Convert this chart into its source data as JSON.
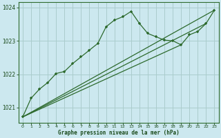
{
  "bg_color": "#cce8ef",
  "grid_color": "#aacccc",
  "line_color": "#2d6a2d",
  "marker_color": "#2d6a2d",
  "xlabel": "Graphe pression niveau de la mer (hPa)",
  "xlabel_color": "#1a4a1a",
  "ylabel_color": "#1a4a1a",
  "xlim": [
    -0.5,
    23.5
  ],
  "ylim": [
    1020.55,
    1024.15
  ],
  "yticks": [
    1021,
    1022,
    1023,
    1024
  ],
  "xticks": [
    0,
    1,
    2,
    3,
    4,
    5,
    6,
    7,
    8,
    9,
    10,
    11,
    12,
    13,
    14,
    15,
    16,
    17,
    18,
    19,
    20,
    21,
    22,
    23
  ],
  "series1_x": [
    0,
    1,
    2,
    3,
    4,
    5,
    6,
    7,
    8,
    9,
    10,
    11,
    12,
    13,
    14,
    15,
    16,
    17,
    18,
    19,
    20,
    21,
    22,
    23
  ],
  "series1_y": [
    1020.72,
    1021.28,
    1021.55,
    1021.75,
    1022.02,
    1022.08,
    1022.32,
    1022.52,
    1022.72,
    1022.92,
    1023.42,
    1023.62,
    1023.72,
    1023.88,
    1023.52,
    1023.22,
    1023.12,
    1023.02,
    1023.0,
    1022.88,
    1023.18,
    1023.28,
    1023.52,
    1023.92
  ],
  "trend1_x": [
    0,
    23
  ],
  "trend1_y": [
    1020.72,
    1023.92
  ],
  "trend2_x": [
    0,
    19
  ],
  "trend2_y": [
    1020.72,
    1022.88
  ],
  "trend3_x": [
    0,
    22
  ],
  "trend3_y": [
    1020.72,
    1023.52
  ]
}
